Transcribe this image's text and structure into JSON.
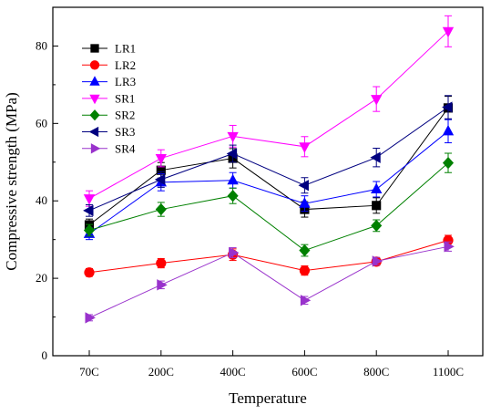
{
  "chart_data": {
    "type": "line",
    "title": "",
    "xlabel": "Temperature",
    "ylabel": "Compressive strength (MPa)",
    "categories": [
      "70C",
      "200C",
      "400C",
      "600C",
      "800C",
      "1100C"
    ],
    "ylim": [
      0,
      90
    ],
    "yticks": [
      0,
      20,
      40,
      60,
      80
    ],
    "grid": false,
    "legend_position": "top-left",
    "series": [
      {
        "name": "LR1",
        "color": "#000000",
        "marker": "square",
        "values": [
          33.8,
          47.9,
          51.0,
          37.8,
          38.8,
          64.0
        ],
        "errors": [
          1.5,
          2.0,
          2.5,
          2.0,
          2.0,
          3.0
        ]
      },
      {
        "name": "LR2",
        "color": "#ff0000",
        "marker": "circle",
        "values": [
          21.5,
          23.9,
          26.1,
          22.0,
          24.3,
          29.8
        ],
        "errors": [
          1.0,
          1.2,
          1.5,
          1.2,
          1.0,
          1.3
        ]
      },
      {
        "name": "LR3",
        "color": "#0000ff",
        "marker": "triangle-up",
        "values": [
          31.5,
          44.8,
          45.3,
          39.3,
          43.0,
          58.0
        ],
        "errors": [
          1.5,
          2.2,
          2.0,
          2.0,
          2.0,
          3.0
        ]
      },
      {
        "name": "SR1",
        "color": "#ff00ff",
        "marker": "triangle-down",
        "values": [
          40.6,
          51.0,
          56.7,
          54.0,
          66.3,
          83.8
        ],
        "errors": [
          2.0,
          2.2,
          2.8,
          2.6,
          3.2,
          4.0
        ]
      },
      {
        "name": "SR2",
        "color": "#008000",
        "marker": "diamond",
        "values": [
          32.4,
          37.8,
          41.3,
          27.2,
          33.6,
          49.8
        ],
        "errors": [
          1.5,
          1.8,
          2.0,
          1.5,
          1.5,
          2.5
        ]
      },
      {
        "name": "SR3",
        "color": "#000080",
        "marker": "triangle-left",
        "values": [
          37.5,
          45.5,
          52.2,
          44.0,
          51.2,
          64.2
        ],
        "errors": [
          1.5,
          2.0,
          2.2,
          2.0,
          2.4,
          3.0
        ]
      },
      {
        "name": "SR4",
        "color": "#9932cc",
        "marker": "triangle-right",
        "values": [
          9.8,
          18.3,
          26.6,
          14.3,
          24.4,
          28.2
        ],
        "errors": [
          0.8,
          1.0,
          1.3,
          1.0,
          1.0,
          1.2
        ]
      }
    ]
  }
}
